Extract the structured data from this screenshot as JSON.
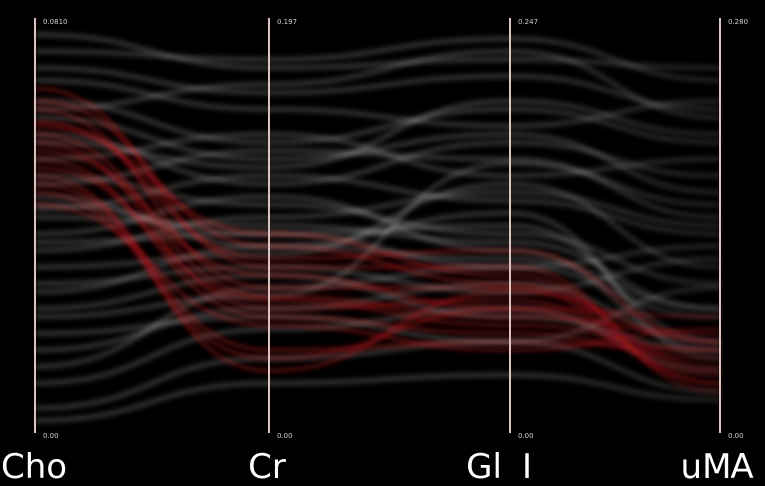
{
  "chart_data": {
    "type": "parallel-coordinates",
    "axes": [
      {
        "name": "Cho",
        "max_label": "0.0810",
        "min_label": "0.00"
      },
      {
        "name": "Cr",
        "max_label": "0.197",
        "min_label": "0.00"
      },
      {
        "name": "Gl",
        "max_label": "0.247",
        "min_label": "0.00"
      },
      {
        "name": "I",
        "max_label": "",
        "min_label": ""
      },
      {
        "name": "uM",
        "max_label": "0.280",
        "min_label": "0.00"
      },
      {
        "name": "A",
        "max_label": "",
        "min_label": ""
      }
    ],
    "series": [
      {
        "color": "#ffffff",
        "lines": [
          [
            0.34,
            0.45,
            0.53,
            0.18
          ],
          [
            0.57,
            0.45,
            0.42,
            0.3
          ],
          [
            0.46,
            0.48,
            0.5,
            0.22
          ],
          [
            0.52,
            0.5,
            0.46,
            0.3
          ],
          [
            0.4,
            0.43,
            0.6,
            0.4
          ],
          [
            0.62,
            0.55,
            0.48,
            0.36
          ],
          [
            0.28,
            0.33,
            0.65,
            0.55
          ],
          [
            0.48,
            0.57,
            0.44,
            0.2
          ],
          [
            0.55,
            0.48,
            0.4,
            0.45
          ],
          [
            0.44,
            0.52,
            0.58,
            0.5
          ],
          [
            0.72,
            0.6,
            0.7,
            0.62
          ],
          [
            0.8,
            0.7,
            0.78,
            0.7
          ],
          [
            0.88,
            0.82,
            0.86,
            0.78
          ],
          [
            0.92,
            0.9,
            0.95,
            0.85
          ],
          [
            0.76,
            0.66,
            0.72,
            0.58
          ],
          [
            0.66,
            0.72,
            0.62,
            0.66
          ],
          [
            0.7,
            0.64,
            0.8,
            0.72
          ],
          [
            0.85,
            0.78,
            0.74,
            0.8
          ],
          [
            0.6,
            0.68,
            0.66,
            0.52
          ],
          [
            0.96,
            0.88,
            0.9,
            0.88
          ],
          [
            0.2,
            0.3,
            0.36,
            0.22
          ],
          [
            0.12,
            0.25,
            0.3,
            0.15
          ],
          [
            0.06,
            0.18,
            0.22,
            0.1
          ],
          [
            0.16,
            0.35,
            0.4,
            0.28
          ],
          [
            0.03,
            0.12,
            0.14,
            0.08
          ],
          [
            0.24,
            0.28,
            0.22,
            0.35
          ],
          [
            0.3,
            0.38,
            0.28,
            0.2
          ],
          [
            0.36,
            0.4,
            0.34,
            0.42
          ],
          [
            0.54,
            0.62,
            0.56,
            0.48
          ],
          [
            0.78,
            0.84,
            0.92,
            0.76
          ]
        ]
      },
      {
        "color": "#e0191f",
        "lines": [
          [
            0.83,
            0.4,
            0.4,
            0.1
          ],
          [
            0.78,
            0.35,
            0.35,
            0.12
          ],
          [
            0.7,
            0.3,
            0.32,
            0.15
          ],
          [
            0.66,
            0.28,
            0.24,
            0.18
          ],
          [
            0.6,
            0.2,
            0.22,
            0.2
          ],
          [
            0.75,
            0.42,
            0.44,
            0.22
          ],
          [
            0.55,
            0.26,
            0.2,
            0.25
          ],
          [
            0.68,
            0.38,
            0.3,
            0.14
          ],
          [
            0.72,
            0.33,
            0.28,
            0.24
          ],
          [
            0.58,
            0.18,
            0.3,
            0.28
          ],
          [
            0.8,
            0.45,
            0.36,
            0.16
          ],
          [
            0.64,
            0.32,
            0.26,
            0.2
          ],
          [
            0.62,
            0.15,
            0.34,
            0.22
          ],
          [
            0.74,
            0.48,
            0.38,
            0.12
          ]
        ]
      }
    ]
  }
}
